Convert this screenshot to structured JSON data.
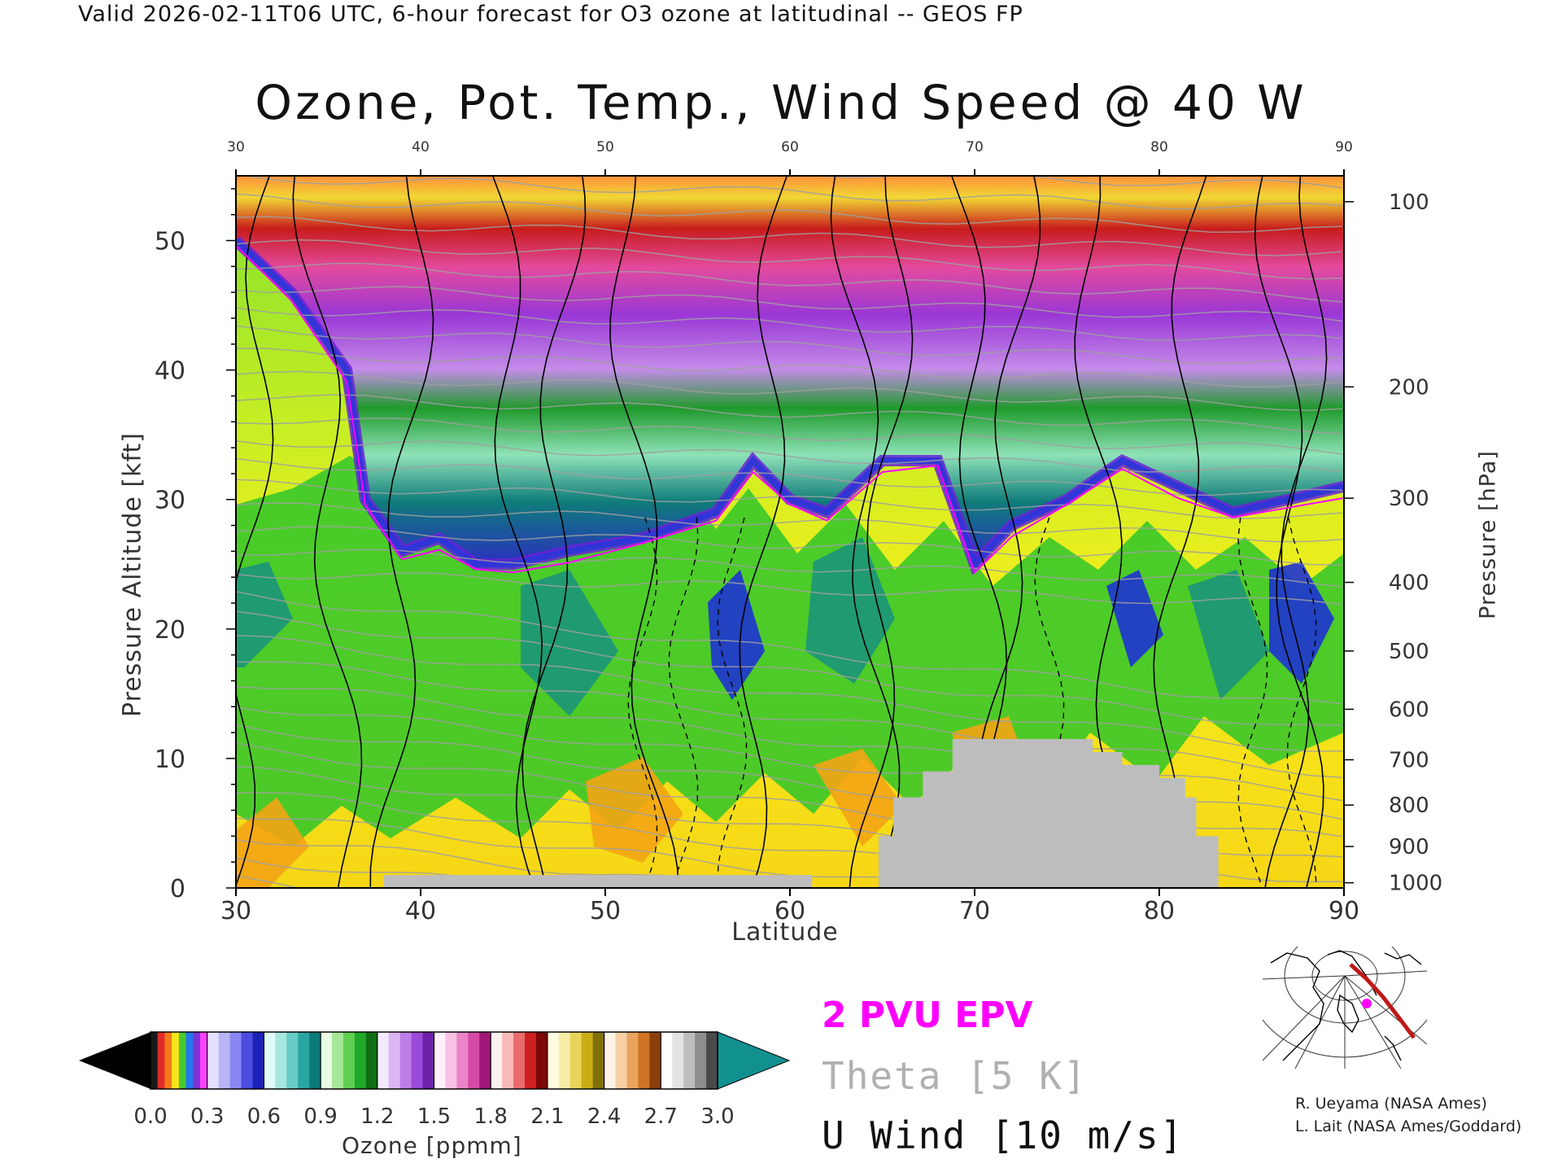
{
  "header": {
    "valid_line": "Valid 2026-02-11T06 UTC, 6-hour forecast for O3 ozone at latitudinal -- GEOS FP",
    "title": "Ozone, Pot. Temp., Wind Speed @ 40 W"
  },
  "chart_data": {
    "type": "heatmap",
    "title": "Ozone, Pot. Temp., Wind Speed @ 40 W",
    "xlabel": "Latitude",
    "ylabel": "Pressure Altitude [kft]",
    "y2label": "Pressure [hPa]",
    "xlim": [
      30,
      90
    ],
    "ylim": [
      0,
      55
    ],
    "x_ticks": [
      "30",
      "40",
      "50",
      "60",
      "70",
      "80",
      "90"
    ],
    "x_top_ticks": [
      "30",
      "40",
      "50",
      "60",
      "70",
      "80",
      "90"
    ],
    "y_ticks": [
      "0",
      "10",
      "20",
      "30",
      "40",
      "50"
    ],
    "y2_ticks": [
      {
        "label": "100",
        "kft": 53.0
      },
      {
        "label": "200",
        "kft": 38.7
      },
      {
        "label": "300",
        "kft": 30.1
      },
      {
        "label": "400",
        "kft": 23.6
      },
      {
        "label": "500",
        "kft": 18.3
      },
      {
        "label": "600",
        "kft": 13.8
      },
      {
        "label": "700",
        "kft": 9.9
      },
      {
        "label": "800",
        "kft": 6.4
      },
      {
        "label": "900",
        "kft": 3.2
      },
      {
        "label": "1000",
        "kft": 0.4
      }
    ],
    "tropopause_kft": [
      {
        "lat": 30,
        "kft": 50
      },
      {
        "lat": 33,
        "kft": 46
      },
      {
        "lat": 36,
        "kft": 40
      },
      {
        "lat": 37,
        "kft": 30
      },
      {
        "lat": 39,
        "kft": 26
      },
      {
        "lat": 41,
        "kft": 27
      },
      {
        "lat": 43,
        "kft": 25
      },
      {
        "lat": 45,
        "kft": 25
      },
      {
        "lat": 48,
        "kft": 26
      },
      {
        "lat": 52,
        "kft": 27
      },
      {
        "lat": 56,
        "kft": 29
      },
      {
        "lat": 58,
        "kft": 33
      },
      {
        "lat": 60,
        "kft": 30
      },
      {
        "lat": 62,
        "kft": 29
      },
      {
        "lat": 65,
        "kft": 33
      },
      {
        "lat": 68,
        "kft": 33
      },
      {
        "lat": 70,
        "kft": 25
      },
      {
        "lat": 72,
        "kft": 28
      },
      {
        "lat": 75,
        "kft": 30
      },
      {
        "lat": 78,
        "kft": 33
      },
      {
        "lat": 81,
        "kft": 31
      },
      {
        "lat": 84,
        "kft": 29
      },
      {
        "lat": 87,
        "kft": 30
      },
      {
        "lat": 90,
        "kft": 31
      }
    ],
    "terrain_kft": [
      {
        "lat": 30,
        "kft": 0
      },
      {
        "lat": 38,
        "kft": 0
      },
      {
        "lat": 38,
        "kft": 1
      },
      {
        "lat": 61.2,
        "kft": 1
      },
      {
        "lat": 61.2,
        "kft": 0
      },
      {
        "lat": 64.8,
        "kft": 0
      },
      {
        "lat": 64.8,
        "kft": 4
      },
      {
        "lat": 65.6,
        "kft": 4
      },
      {
        "lat": 65.6,
        "kft": 7
      },
      {
        "lat": 67.2,
        "kft": 7
      },
      {
        "lat": 67.2,
        "kft": 9
      },
      {
        "lat": 68.8,
        "kft": 9
      },
      {
        "lat": 68.8,
        "kft": 11.5
      },
      {
        "lat": 76.4,
        "kft": 11.5
      },
      {
        "lat": 76.4,
        "kft": 10.5
      },
      {
        "lat": 78,
        "kft": 10.5
      },
      {
        "lat": 78,
        "kft": 9.5
      },
      {
        "lat": 80,
        "kft": 9.5
      },
      {
        "lat": 80,
        "kft": 8.5
      },
      {
        "lat": 81.4,
        "kft": 8.5
      },
      {
        "lat": 81.4,
        "kft": 7
      },
      {
        "lat": 82,
        "kft": 7
      },
      {
        "lat": 82,
        "kft": 4
      },
      {
        "lat": 83.2,
        "kft": 4
      },
      {
        "lat": 83.2,
        "kft": 0
      },
      {
        "lat": 90,
        "kft": 0
      }
    ],
    "colors": {
      "terrain": "#bdbdbd",
      "epv_line": "#ff00ff",
      "theta_line": "#a0a0a0",
      "wind_line": "#000000"
    }
  },
  "colorbar": {
    "title": "Ozone [ppmm]",
    "tick_labels": [
      "0.0",
      "0.3",
      "0.6",
      "0.9",
      "1.2",
      "1.5",
      "1.8",
      "2.1",
      "2.4",
      "2.7",
      "3.0"
    ],
    "range": [
      0,
      3
    ],
    "under_color": "#000000",
    "over_color": "#119090",
    "bands": [
      [
        "#1a1a1a",
        "#e32a2a",
        "#f47a1a",
        "#f5e51b",
        "#4bc82d",
        "#2277ee",
        "#7d33d6",
        "#ff40ff"
      ],
      [
        "#e6e0ff",
        "#b9b4f6",
        "#8a87f2",
        "#4b4de0",
        "#1c22b8"
      ],
      [
        "#e0fbf8",
        "#a6e7e0",
        "#66ccc5",
        "#2ba5a2",
        "#0b7a78"
      ],
      [
        "#e6fbe0",
        "#a7e79a",
        "#5fcf52",
        "#20a82b",
        "#0e6e11"
      ],
      [
        "#f4e8ff",
        "#dcb6f4",
        "#bd7ee8",
        "#9b4bd9",
        "#6f20a8"
      ],
      [
        "#fff0fb",
        "#f8c2e4",
        "#ec84c7",
        "#d64aa7",
        "#a01778"
      ],
      [
        "#fff0f0",
        "#f8b9b9",
        "#ea6b6b",
        "#cf2020",
        "#7c0808"
      ],
      [
        "#fffbe0",
        "#f8eca6",
        "#e8d45a",
        "#c9ad15",
        "#817006"
      ],
      [
        "#fff3e6",
        "#f8d0a6",
        "#eaa460",
        "#cf7424",
        "#8a400b"
      ],
      [
        "#ffffff",
        "#e3e3e3",
        "#bdbdbd",
        "#8e8e8e",
        "#4a4a4a"
      ]
    ]
  },
  "legend": {
    "epv": "2 PVU EPV",
    "theta": "Theta [5 K]",
    "wind": "U Wind [10 m/s]"
  },
  "credits": [
    "R. Ueyama (NASA Ames)",
    "L. Lait (NASA Ames/Goddard)"
  ]
}
